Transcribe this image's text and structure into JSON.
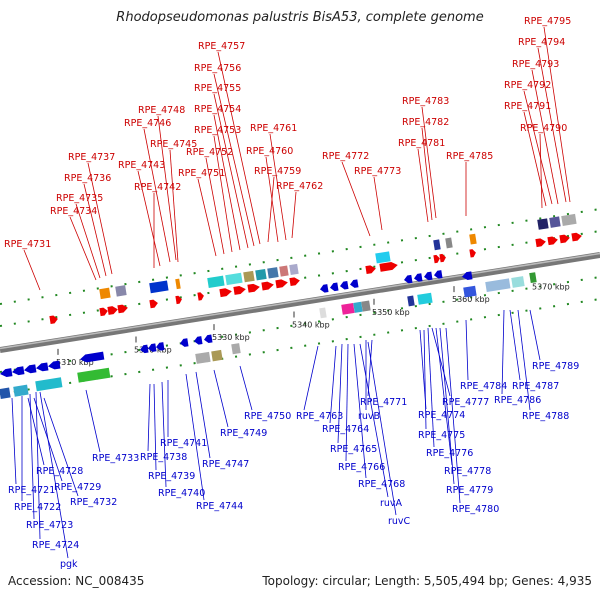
{
  "title": "Rhodopseudomonas palustris BisA53, complete genome",
  "footer": {
    "accession": "Accession: NC_008435",
    "summary": "Topology: circular; Length: 5,505,494 bp; Genes: 4,935"
  },
  "colors": {
    "forward": "#ee0000",
    "reverse": "#0000cc",
    "label_forward": "#cc0000",
    "label_reverse": "#0000cc",
    "backbone": "#888888",
    "tick": "#228822"
  },
  "tick_labels": [
    "5310 kbp",
    "5320 kbp",
    "5330 kbp",
    "5340 kbp",
    "5350 kbp",
    "5360 kbp",
    "5370 kbp"
  ],
  "forward_labels": [
    "RPE_4731",
    "RPE_4734",
    "RPE_4735",
    "RPE_4736",
    "RPE_4737",
    "RPE_4742",
    "RPE_4743",
    "RPE_4745",
    "RPE_4746",
    "RPE_4748",
    "RPE_4751",
    "RPE_4752",
    "RPE_4753",
    "RPE_4754",
    "RPE_4755",
    "RPE_4756",
    "RPE_4757",
    "RPE_4759",
    "RPE_4760",
    "RPE_4761",
    "RPE_4762",
    "RPE_4772",
    "RPE_4773",
    "RPE_4781",
    "RPE_4782",
    "RPE_4783",
    "RPE_4785",
    "RPE_4790",
    "RPE_4791",
    "RPE_4792",
    "RPE_4793",
    "RPE_4794",
    "RPE_4795"
  ],
  "reverse_labels": [
    "pgk",
    "RPE_4724",
    "RPE_4723",
    "RPE_4722",
    "RPE_4721",
    "RPE_4728",
    "RPE_4729",
    "RPE_4732",
    "RPE_4733",
    "RPE_4738",
    "RPE_4739",
    "RPE_4740",
    "RPE_4741",
    "RPE_4744",
    "RPE_4747",
    "RPE_4749",
    "RPE_4750",
    "RPE_4763",
    "RPE_4764",
    "RPE_4765",
    "RPE_4766",
    "RPE_4768",
    "ruvA",
    "ruvC",
    "ruvB",
    "RPE_4771",
    "RPE_4774",
    "RPE_4775",
    "RPE_4776",
    "RPE_4777",
    "RPE_4778",
    "RPE_4779",
    "RPE_4780",
    "RPE_4784",
    "RPE_4786",
    "RPE_4787",
    "RPE_4788",
    "RPE_4789"
  ]
}
